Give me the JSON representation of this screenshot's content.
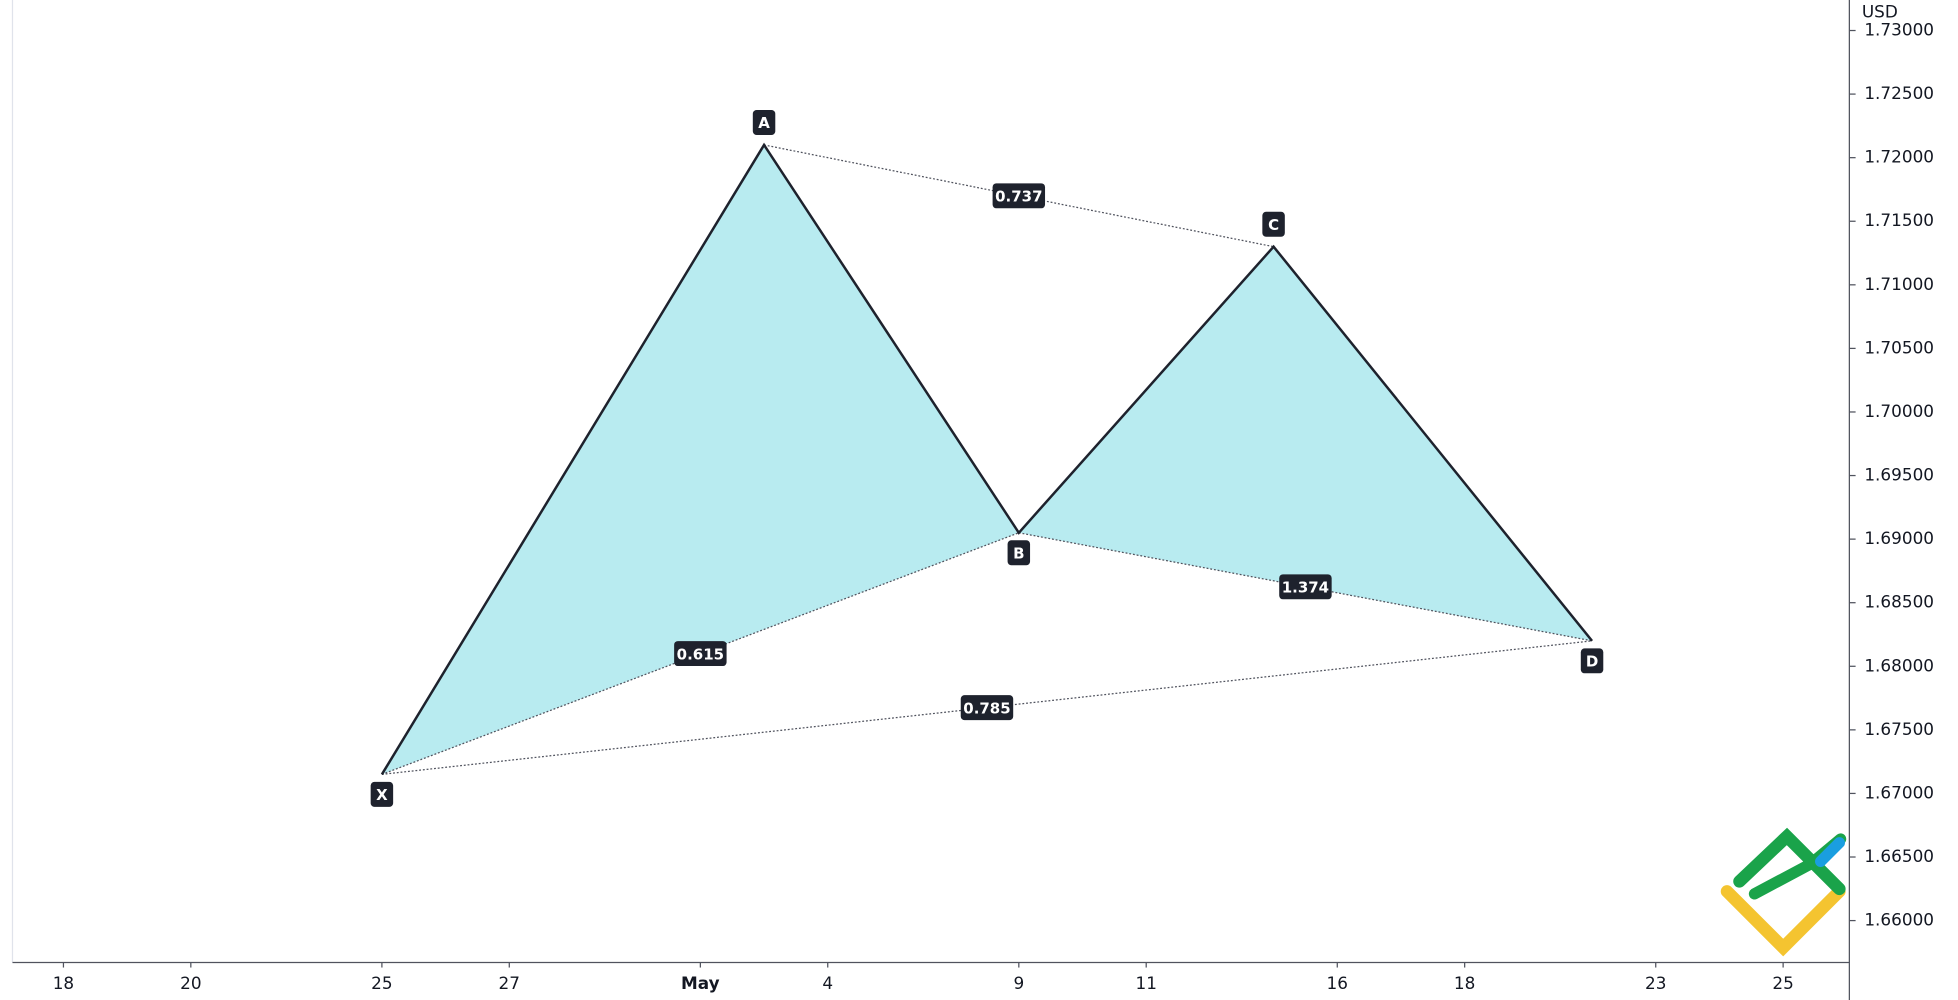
{
  "chart_data": {
    "type": "harmonic",
    "y_axis_label": "USD",
    "point_labels": [
      "X",
      "A",
      "B",
      "C",
      "D"
    ],
    "x": [
      6,
      12,
      16,
      20,
      25
    ],
    "values": [
      1.6715,
      1.721,
      1.6905,
      1.713,
      1.682
    ],
    "ratios": [
      0.615,
      0.737,
      1.374,
      0.785
    ],
    "line_color": "#1e222d",
    "fill_color": "#b8ebf0",
    "xlim": [
      0.2,
      29.04
    ],
    "xticks": [
      {
        "value": 1,
        "label": "18"
      },
      {
        "value": 3,
        "label": "20"
      },
      {
        "value": 6,
        "label": "25"
      },
      {
        "value": 8,
        "label": "27"
      },
      {
        "value": 11,
        "label": "May"
      },
      {
        "value": 13,
        "label": "4"
      },
      {
        "value": 16,
        "label": "9"
      },
      {
        "value": 18,
        "label": "11"
      },
      {
        "value": 21,
        "label": "16"
      },
      {
        "value": 23,
        "label": "18"
      },
      {
        "value": 26,
        "label": "23"
      },
      {
        "value": 28,
        "label": "25"
      }
    ],
    "ylim": [
      1.6567,
      1.7324
    ],
    "yticks": [
      {
        "value": 1.66,
        "label": "1.66000"
      },
      {
        "value": 1.665,
        "label": "1.66500"
      },
      {
        "value": 1.67,
        "label": "1.67000"
      },
      {
        "value": 1.675,
        "label": "1.67500"
      },
      {
        "value": 1.68,
        "label": "1.68000"
      },
      {
        "value": 1.685,
        "label": "1.68500"
      },
      {
        "value": 1.69,
        "label": "1.69000"
      },
      {
        "value": 1.695,
        "label": "1.69500"
      },
      {
        "value": 1.7,
        "label": "1.70000"
      },
      {
        "value": 1.705,
        "label": "1.70500"
      },
      {
        "value": 1.71,
        "label": "1.71000"
      },
      {
        "value": 1.715,
        "label": "1.71500"
      },
      {
        "value": 1.72,
        "label": "1.72000"
      },
      {
        "value": 1.725,
        "label": "1.72500"
      },
      {
        "value": 1.73,
        "label": "1.73000"
      }
    ]
  }
}
